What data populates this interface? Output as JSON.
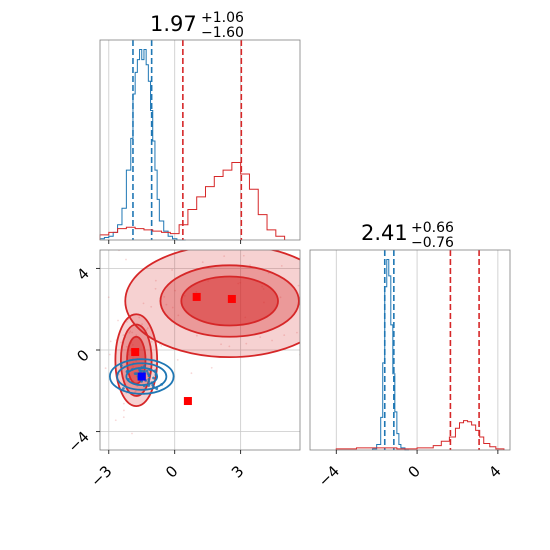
{
  "colors": {
    "red": "#d62728",
    "blue": "#1f77b4",
    "marker_red": "#ff0000",
    "marker_blue": "#0000ff"
  },
  "chart_data": [
    {
      "type": "histogram",
      "panel": "x-marginal",
      "title": {
        "value": "1.97",
        "upper": "+1.06",
        "lower": "−1.60"
      },
      "xlim": [
        -3.8,
        5.8
      ],
      "series": [
        {
          "color": "#1f77b4",
          "bin_edges": [
            -3.4,
            -3.2,
            -3.0,
            -2.8,
            -2.6,
            -2.4,
            -2.2,
            -2.0,
            -1.9,
            -1.8,
            -1.7,
            -1.6,
            -1.5,
            -1.4,
            -1.3,
            -1.2,
            -1.1,
            -1.0,
            -0.9,
            -0.8,
            -0.7,
            -0.5,
            -0.3,
            -0.1,
            0.1,
            0.3,
            0.5
          ],
          "counts": [
            1,
            2,
            3,
            6,
            12,
            25,
            55,
            80,
            115,
            132,
            142,
            150,
            142,
            150,
            138,
            125,
            102,
            78,
            55,
            32,
            15,
            7,
            3,
            1,
            0,
            0
          ],
          "quantile_lines": [
            -1.9,
            -1.05
          ]
        },
        {
          "color": "#d62728",
          "bin_edges": [
            -3.4,
            -3.0,
            -2.6,
            -2.2,
            -1.8,
            -1.4,
            -1.0,
            -0.6,
            -0.2,
            0.2,
            0.6,
            1.0,
            1.4,
            1.8,
            2.2,
            2.6,
            3.0,
            3.4,
            3.8,
            4.2,
            4.6,
            5.0
          ],
          "counts": [
            4,
            6,
            9,
            10,
            9,
            8,
            7,
            6,
            5,
            12,
            24,
            34,
            42,
            50,
            55,
            61,
            52,
            40,
            20,
            8,
            3
          ],
          "quantile_lines": [
            0.37,
            3.03
          ]
        }
      ]
    },
    {
      "type": "histogram",
      "panel": "y-marginal",
      "title": {
        "value": "2.41",
        "upper": "+0.66",
        "lower": "−0.76"
      },
      "xlim": [
        -5.3,
        4.6
      ],
      "x_ticks": [
        "−4",
        "0",
        "4"
      ],
      "series": [
        {
          "color": "#1f77b4",
          "bin_edges": [
            -2.2,
            -2.0,
            -1.8,
            -1.7,
            -1.6,
            -1.5,
            -1.4,
            -1.3,
            -1.2,
            -1.1,
            -1.0,
            -0.9,
            -0.8,
            -0.6,
            -0.4
          ],
          "counts": [
            1,
            5,
            30,
            80,
            150,
            175,
            160,
            115,
            70,
            35,
            15,
            5,
            2,
            0
          ],
          "quantile_lines": [
            -1.6,
            -1.15
          ]
        },
        {
          "color": "#d62728",
          "bin_edges": [
            -4.0,
            -3.0,
            -2.0,
            -1.0,
            0.0,
            0.8,
            1.2,
            1.6,
            1.9,
            2.1,
            2.3,
            2.5,
            2.7,
            2.9,
            3.1,
            3.3,
            3.6,
            3.9,
            4.3
          ],
          "counts": [
            1,
            2,
            2,
            1,
            2,
            4,
            8,
            12,
            20,
            25,
            27,
            26,
            23,
            18,
            12,
            6,
            3,
            1
          ],
          "quantile_lines": [
            1.65,
            3.07
          ]
        }
      ]
    },
    {
      "type": "contour",
      "panel": "joint",
      "xlim": [
        -3.4,
        5.7
      ],
      "ylim": [
        -4.9,
        4.9
      ],
      "x_ticks": [
        "−3",
        "0",
        "3"
      ],
      "y_ticks": [
        "−4",
        "0",
        "4"
      ],
      "series": [
        {
          "color": "#d62728",
          "filled": true,
          "modes": [
            {
              "center": [
                2.5,
                2.4
              ],
              "levels": [
                [
                  2.2,
                  1.2
                ],
                [
                  3.15,
                  1.75
                ],
                [
                  4.75,
                  2.75
                ]
              ]
            },
            {
              "center": [
                -1.75,
                -0.5
              ],
              "levels": [
                [
                  0.42,
                  1.15
                ],
                [
                  0.7,
                  1.75
                ],
                [
                  0.95,
                  2.25
                ]
              ]
            }
          ],
          "points": [
            [
              1.0,
              2.6
            ],
            [
              2.6,
              2.5
            ],
            [
              -1.8,
              -0.1
            ],
            [
              -1.5,
              -1.3
            ],
            [
              0.6,
              -2.5
            ]
          ]
        },
        {
          "color": "#1f77b4",
          "filled": false,
          "modes": [
            {
              "center": [
                -1.5,
                -1.3
              ],
              "levels": [
                [
                  0.7,
                  0.42
                ],
                [
                  1.12,
                  0.65
                ],
                [
                  1.45,
                  0.85
                ]
              ]
            }
          ],
          "points": [
            [
              -1.5,
              -1.3
            ]
          ]
        }
      ]
    }
  ]
}
